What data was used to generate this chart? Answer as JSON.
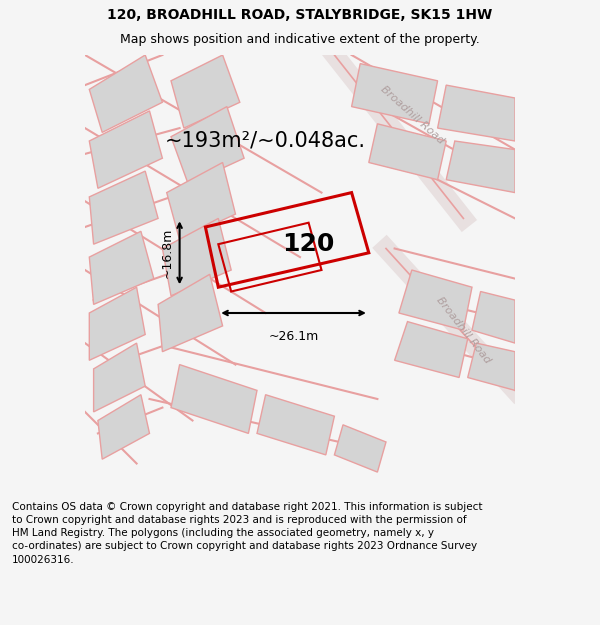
{
  "title_line1": "120, BROADHILL ROAD, STALYBRIDGE, SK15 1HW",
  "title_line2": "Map shows position and indicative extent of the property.",
  "area_text": "~193m²/~0.048ac.",
  "label_120": "120",
  "dim_width": "~26.1m",
  "dim_height": "~16.8m",
  "road_label_top": "Broadhill Road",
  "road_label_bottom": "Broadhill Road",
  "footer_text": "Contains OS data © Crown copyright and database right 2021. This information is subject to Crown copyright and database rights 2023 and is reproduced with the permission of HM Land Registry. The polygons (including the associated geometry, namely x, y co-ordinates) are subject to Crown copyright and database rights 2023 Ordnance Survey 100026316.",
  "bg_color": "#f5f5f5",
  "map_bg": "#f0eeee",
  "plot_outline_color": "#cc0000",
  "building_fill": "#d4d4d4",
  "road_band_color": "#e8e0e0",
  "road_line_color": "#e8a0a0",
  "title_fontsize": 10,
  "subtitle_fontsize": 9,
  "area_fontsize": 15,
  "label_fontsize": 18,
  "footer_fontsize": 7.5
}
